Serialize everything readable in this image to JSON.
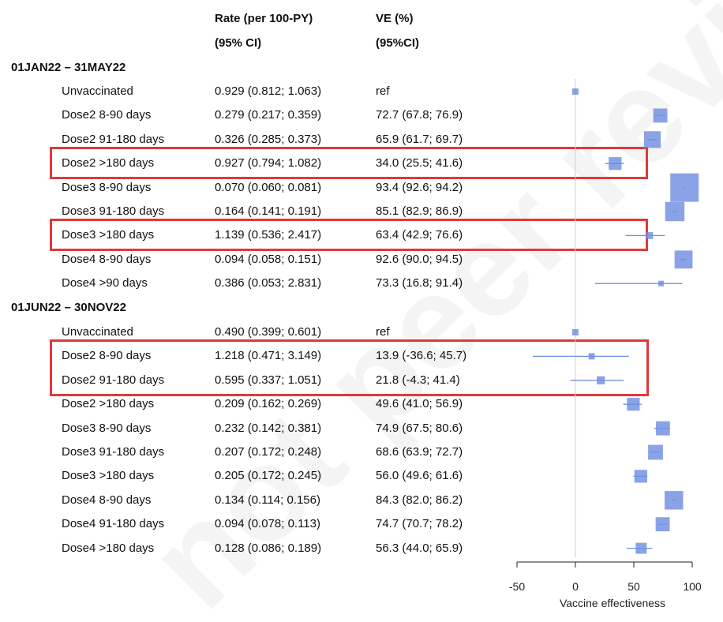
{
  "header": {
    "rate_line1": "Rate (per 100-PY)",
    "rate_line2": "(95% CI)",
    "ve_line1": "VE (%)",
    "ve_line2": "(95%CI)"
  },
  "watermark_text": "not peer reviewed",
  "sections": [
    {
      "title": "01JAN22 – 31MAY22"
    },
    {
      "title": "01JUN22 – 30NOV22"
    }
  ],
  "rows": [
    {
      "label": "Unvaccinated",
      "rate": "0.929 (0.812; 1.063)",
      "ve_text": "ref"
    },
    {
      "label": "Dose2 8-90 days",
      "rate": "0.279 (0.217; 0.359)",
      "ve_text": "72.7 (67.8; 76.9)"
    },
    {
      "label": "Dose2 91-180 days",
      "rate": "0.326 (0.285; 0.373)",
      "ve_text": "65.9 (61.7; 69.7)"
    },
    {
      "label": "Dose2 >180 days",
      "rate": "0.927 (0.794; 1.082)",
      "ve_text": "34.0 (25.5; 41.6)"
    },
    {
      "label": "Dose3 8-90 days",
      "rate": "0.070 (0.060; 0.081)",
      "ve_text": "93.4 (92.6; 94.2)"
    },
    {
      "label": "Dose3 91-180 days",
      "rate": "0.164 (0.141; 0.191)",
      "ve_text": "85.1 (82.9; 86.9)"
    },
    {
      "label": "Dose3 >180 days",
      "rate": "1.139 (0.536; 2.417)",
      "ve_text": "63.4 (42.9; 76.6)"
    },
    {
      "label": "Dose4 8-90 days",
      "rate": "0.094 (0.058; 0.151)",
      "ve_text": "92.6 (90.0; 94.5)"
    },
    {
      "label": "Dose4 >90 days",
      "rate": "0.386 (0.053; 2.831)",
      "ve_text": "73.3 (16.8; 91.4)"
    },
    {
      "label": "Unvaccinated",
      "rate": "0.490 (0.399; 0.601)",
      "ve_text": "ref"
    },
    {
      "label": "Dose2 8-90 days",
      "rate": "1.218 (0.471; 3.149)",
      "ve_text": "13.9 (-36.6; 45.7)"
    },
    {
      "label": "Dose2 91-180 days",
      "rate": "0.595 (0.337; 1.051)",
      "ve_text": "21.8 (-4.3; 41.4)"
    },
    {
      "label": "Dose2 >180 days",
      "rate": "0.209 (0.162; 0.269)",
      "ve_text": "49.6 (41.0; 56.9)"
    },
    {
      "label": "Dose3 8-90 days",
      "rate": "0.232 (0.142; 0.381)",
      "ve_text": "74.9 (67.5; 80.6)"
    },
    {
      "label": "Dose3 91-180 days",
      "rate": "0.207 (0.172; 0.248)",
      "ve_text": "68.6 (63.9; 72.7)"
    },
    {
      "label": "Dose3 >180 days",
      "rate": "0.205 (0.172; 0.245)",
      "ve_text": "56.0 (49.6; 61.6)"
    },
    {
      "label": "Dose4 8-90 days",
      "rate": "0.134 (0.114; 0.156)",
      "ve_text": "84.3 (82.0; 86.2)"
    },
    {
      "label": "Dose4 91-180 days",
      "rate": "0.094 (0.078; 0.113)",
      "ve_text": "74.7 (70.7; 78.2)"
    },
    {
      "label": "Dose4 >180 days",
      "rate": "0.128 (0.086; 0.189)",
      "ve_text": "56.3 (44.0; 65.9)"
    }
  ],
  "colors": {
    "point": "#6f8fe0",
    "highlight": "#e0393a",
    "axis": "#222222",
    "ref_line": "#d0d0d0"
  },
  "chart_data": {
    "type": "forest",
    "xlabel": "Vaccine effectiveness",
    "xlim": [
      -50,
      100
    ],
    "xticks": [
      -50,
      0,
      50,
      100
    ],
    "reference_line": 0,
    "highlighted_rows": [
      3,
      6,
      10,
      11
    ],
    "points": [
      {
        "ve": 0,
        "lo": 0,
        "hi": 0,
        "weight": 0.15
      },
      {
        "ve": 72.7,
        "lo": 67.8,
        "hi": 76.9,
        "weight": 0.45
      },
      {
        "ve": 65.9,
        "lo": 61.7,
        "hi": 69.7,
        "weight": 0.55
      },
      {
        "ve": 34.0,
        "lo": 25.5,
        "hi": 41.6,
        "weight": 0.4
      },
      {
        "ve": 93.4,
        "lo": 92.6,
        "hi": 94.2,
        "weight": 1.0
      },
      {
        "ve": 85.1,
        "lo": 82.9,
        "hi": 86.9,
        "weight": 0.65
      },
      {
        "ve": 63.4,
        "lo": 42.9,
        "hi": 76.6,
        "weight": 0.18
      },
      {
        "ve": 92.6,
        "lo": 90.0,
        "hi": 94.5,
        "weight": 0.6
      },
      {
        "ve": 73.3,
        "lo": 16.8,
        "hi": 91.4,
        "weight": 0.12
      },
      {
        "ve": 0,
        "lo": 0,
        "hi": 0,
        "weight": 0.15
      },
      {
        "ve": 13.9,
        "lo": -36.6,
        "hi": 45.7,
        "weight": 0.15
      },
      {
        "ve": 21.8,
        "lo": -4.3,
        "hi": 41.4,
        "weight": 0.22
      },
      {
        "ve": 49.6,
        "lo": 41.0,
        "hi": 56.9,
        "weight": 0.4
      },
      {
        "ve": 74.9,
        "lo": 67.5,
        "hi": 80.6,
        "weight": 0.45
      },
      {
        "ve": 68.6,
        "lo": 63.9,
        "hi": 72.7,
        "weight": 0.48
      },
      {
        "ve": 56.0,
        "lo": 49.6,
        "hi": 61.6,
        "weight": 0.4
      },
      {
        "ve": 84.3,
        "lo": 82.0,
        "hi": 86.2,
        "weight": 0.62
      },
      {
        "ve": 74.7,
        "lo": 70.7,
        "hi": 78.2,
        "weight": 0.45
      },
      {
        "ve": 56.3,
        "lo": 44.0,
        "hi": 65.9,
        "weight": 0.33
      }
    ]
  }
}
